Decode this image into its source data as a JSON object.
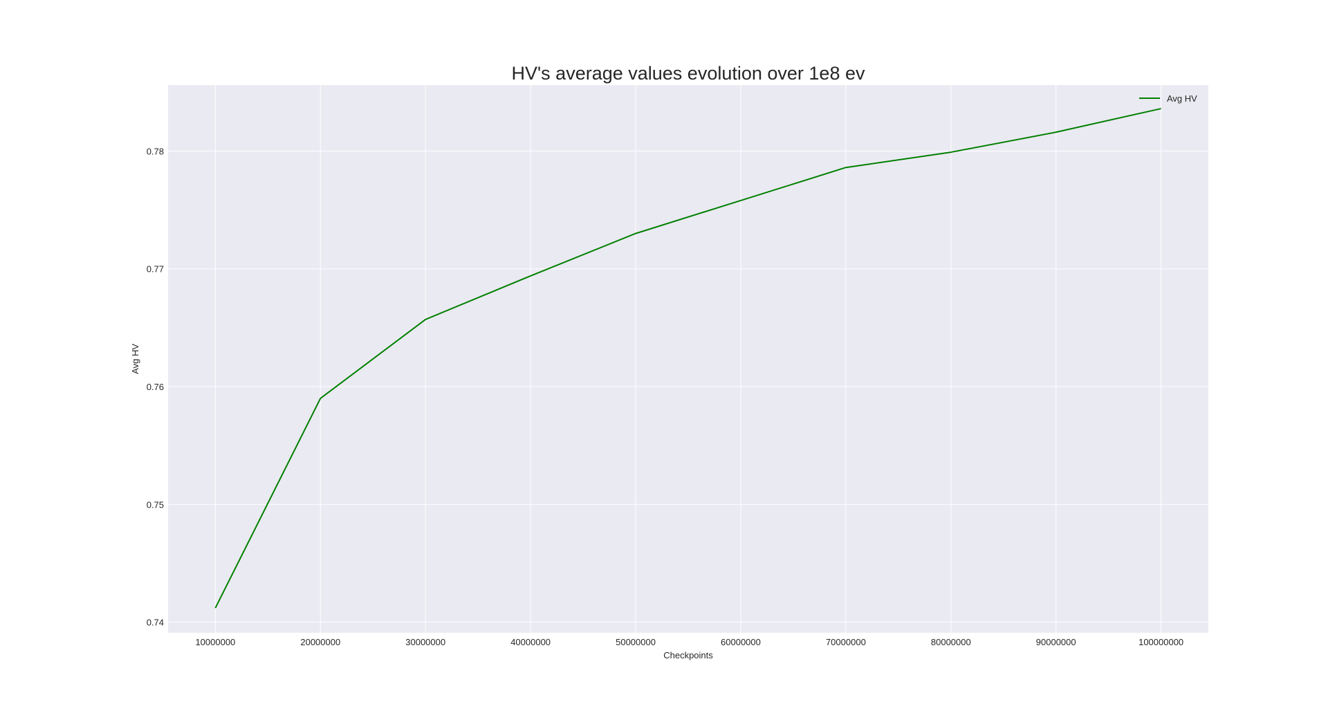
{
  "chart_data": {
    "type": "line",
    "title": "HV's average values evolution over 1e8 ev",
    "xlabel": "Checkpoints",
    "ylabel": "Avg HV",
    "x": [
      10000000,
      20000000,
      30000000,
      40000000,
      50000000,
      60000000,
      70000000,
      80000000,
      90000000,
      100000000
    ],
    "x_tick_labels": [
      "10000000",
      "20000000",
      "30000000",
      "40000000",
      "50000000",
      "60000000",
      "70000000",
      "80000000",
      "90000000",
      "100000000"
    ],
    "y_ticks": [
      0.74,
      0.75,
      0.76,
      0.77,
      0.78
    ],
    "y_tick_labels": [
      "0.74",
      "0.75",
      "0.76",
      "0.77",
      "0.78"
    ],
    "xlim": [
      5500000,
      104500000
    ],
    "ylim": [
      0.7391,
      0.7856
    ],
    "grid": true,
    "legend_position": "top-right",
    "series": [
      {
        "name": "Avg HV",
        "color": "#008000",
        "values": [
          0.7412,
          0.759,
          0.7657,
          0.7694,
          0.773,
          0.7758,
          0.7786,
          0.7799,
          0.7816,
          0.7836
        ]
      }
    ],
    "colors": {
      "plot_background": "#eaeaf2",
      "grid": "#ffffff",
      "text": "#262626"
    }
  }
}
